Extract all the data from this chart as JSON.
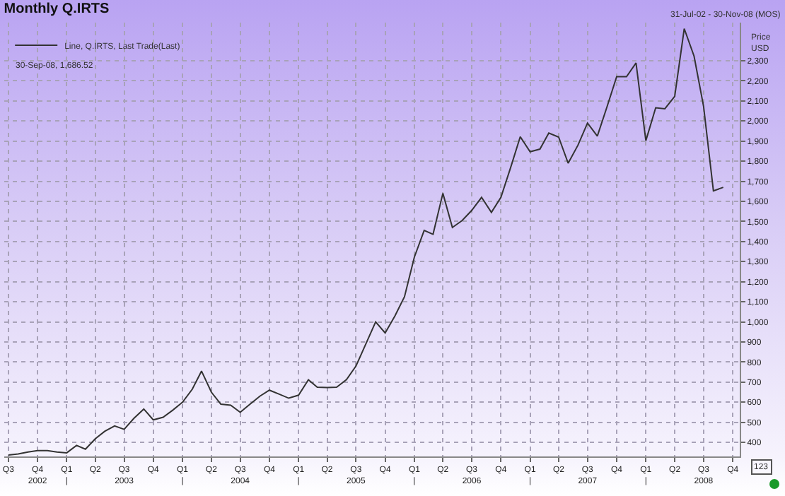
{
  "chart_data": {
    "type": "line",
    "title": "Monthly Q.IRTS",
    "ylabel": "Price\nUSD",
    "annotations": [
      "31-Jul-02 - 30-Nov-08 (MOS)",
      "30-Sep-08, 1,686.52",
      "123"
    ],
    "x": [
      "2002-07",
      "2002-08",
      "2002-09",
      "2002-10",
      "2002-11",
      "2002-12",
      "2003-01",
      "2003-02",
      "2003-03",
      "2003-04",
      "2003-05",
      "2003-06",
      "2003-07",
      "2003-08",
      "2003-09",
      "2003-10",
      "2003-11",
      "2003-12",
      "2004-01",
      "2004-02",
      "2004-03",
      "2004-04",
      "2004-05",
      "2004-06",
      "2004-07",
      "2004-08",
      "2004-09",
      "2004-10",
      "2004-11",
      "2004-12",
      "2005-01",
      "2005-02",
      "2005-03",
      "2005-04",
      "2005-05",
      "2005-06",
      "2005-07",
      "2005-08",
      "2005-09",
      "2005-10",
      "2005-11",
      "2005-12",
      "2006-01",
      "2006-02",
      "2006-03",
      "2006-04",
      "2006-05",
      "2006-06",
      "2006-07",
      "2006-08",
      "2006-09",
      "2006-10",
      "2006-11",
      "2006-12",
      "2007-01",
      "2007-02",
      "2007-03",
      "2007-04",
      "2007-05",
      "2007-06",
      "2007-07",
      "2007-08",
      "2007-09",
      "2007-10",
      "2007-11",
      "2007-12",
      "2008-01",
      "2008-02",
      "2008-03",
      "2008-04",
      "2008-05",
      "2008-06",
      "2008-07",
      "2008-08",
      "2008-09"
    ],
    "series": [
      {
        "name": "Line, Q.IRTS, Last Trade(Last)",
        "color": "#333333",
        "values": [
          337,
          342,
          352,
          359,
          359,
          352,
          348,
          385,
          366,
          418,
          455,
          482,
          465,
          520,
          566,
          512,
          525,
          560,
          600,
          665,
          755,
          650,
          590,
          585,
          550,
          590,
          630,
          660,
          640,
          620,
          635,
          712,
          675,
          673,
          675,
          712,
          780,
          890,
          1000,
          945,
          1030,
          1125,
          1322,
          1455,
          1436,
          1640,
          1470,
          1505,
          1555,
          1620,
          1545,
          1620,
          1770,
          1922,
          1847,
          1860,
          1940,
          1920,
          1790,
          1880,
          1990,
          1925,
          2073,
          2221,
          2221,
          2289,
          1902,
          2066,
          2061,
          2123,
          2460,
          2323,
          2073,
          1652,
          1670
        ]
      }
    ],
    "xlim": [
      "2002-06-18",
      "2008-10-23"
    ],
    "xticks": [
      {
        "value": "2002-07",
        "label": "Q3"
      },
      {
        "value": "2002-10",
        "label": "Q4\n2002"
      },
      {
        "value": "2003-01",
        "label": "Q1\n|"
      },
      {
        "value": "2003-04",
        "label": "Q2"
      },
      {
        "value": "2003-07",
        "label": "Q3\n2003"
      },
      {
        "value": "2003-10",
        "label": "Q4"
      },
      {
        "value": "2004-01",
        "label": "Q1\n|"
      },
      {
        "value": "2004-04",
        "label": "Q2"
      },
      {
        "value": "2004-07",
        "label": "Q3\n2004"
      },
      {
        "value": "2004-10",
        "label": "Q4"
      },
      {
        "value": "2005-01",
        "label": "Q1\n|"
      },
      {
        "value": "2005-04",
        "label": "Q2"
      },
      {
        "value": "2005-07",
        "label": "Q3\n2005"
      },
      {
        "value": "2005-10",
        "label": "Q4"
      },
      {
        "value": "2006-01",
        "label": "Q1\n|"
      },
      {
        "value": "2006-04",
        "label": "Q2"
      },
      {
        "value": "2006-07",
        "label": "Q3\n2006"
      },
      {
        "value": "2006-10",
        "label": "Q4"
      },
      {
        "value": "2007-01",
        "label": "Q1\n|"
      },
      {
        "value": "2007-04",
        "label": "Q2"
      },
      {
        "value": "2007-07",
        "label": "Q3\n2007"
      },
      {
        "value": "2007-10",
        "label": "Q4"
      },
      {
        "value": "2008-01",
        "label": "Q1\n|"
      },
      {
        "value": "2008-04",
        "label": "Q2"
      },
      {
        "value": "2008-07",
        "label": "Q3\n2008"
      },
      {
        "value": "2008-10",
        "label": "Q4"
      }
    ],
    "ylim": [
      330,
      2490
    ],
    "yticks": [
      400,
      500,
      600,
      700,
      800,
      900,
      {
        "value": 1000,
        "label": "1,000"
      },
      {
        "value": 1100,
        "label": "1,100"
      },
      {
        "value": 1200,
        "label": "1,200"
      },
      {
        "value": 1300,
        "label": "1,300"
      },
      {
        "value": 1400,
        "label": "1,400"
      },
      {
        "value": 1500,
        "label": "1,500"
      },
      {
        "value": 1600,
        "label": "1,600"
      },
      {
        "value": 1700,
        "label": "1,700"
      },
      {
        "value": 1800,
        "label": "1,800"
      },
      {
        "value": 1900,
        "label": "1,900"
      },
      {
        "value": 2000,
        "label": "2,000"
      },
      {
        "value": 2100,
        "label": "2,100"
      },
      {
        "value": 2200,
        "label": "2,200"
      },
      {
        "value": 2300,
        "label": "2,300"
      }
    ],
    "grid": true,
    "legend": "top left",
    "marker": "none",
    "line_style": "solid"
  }
}
